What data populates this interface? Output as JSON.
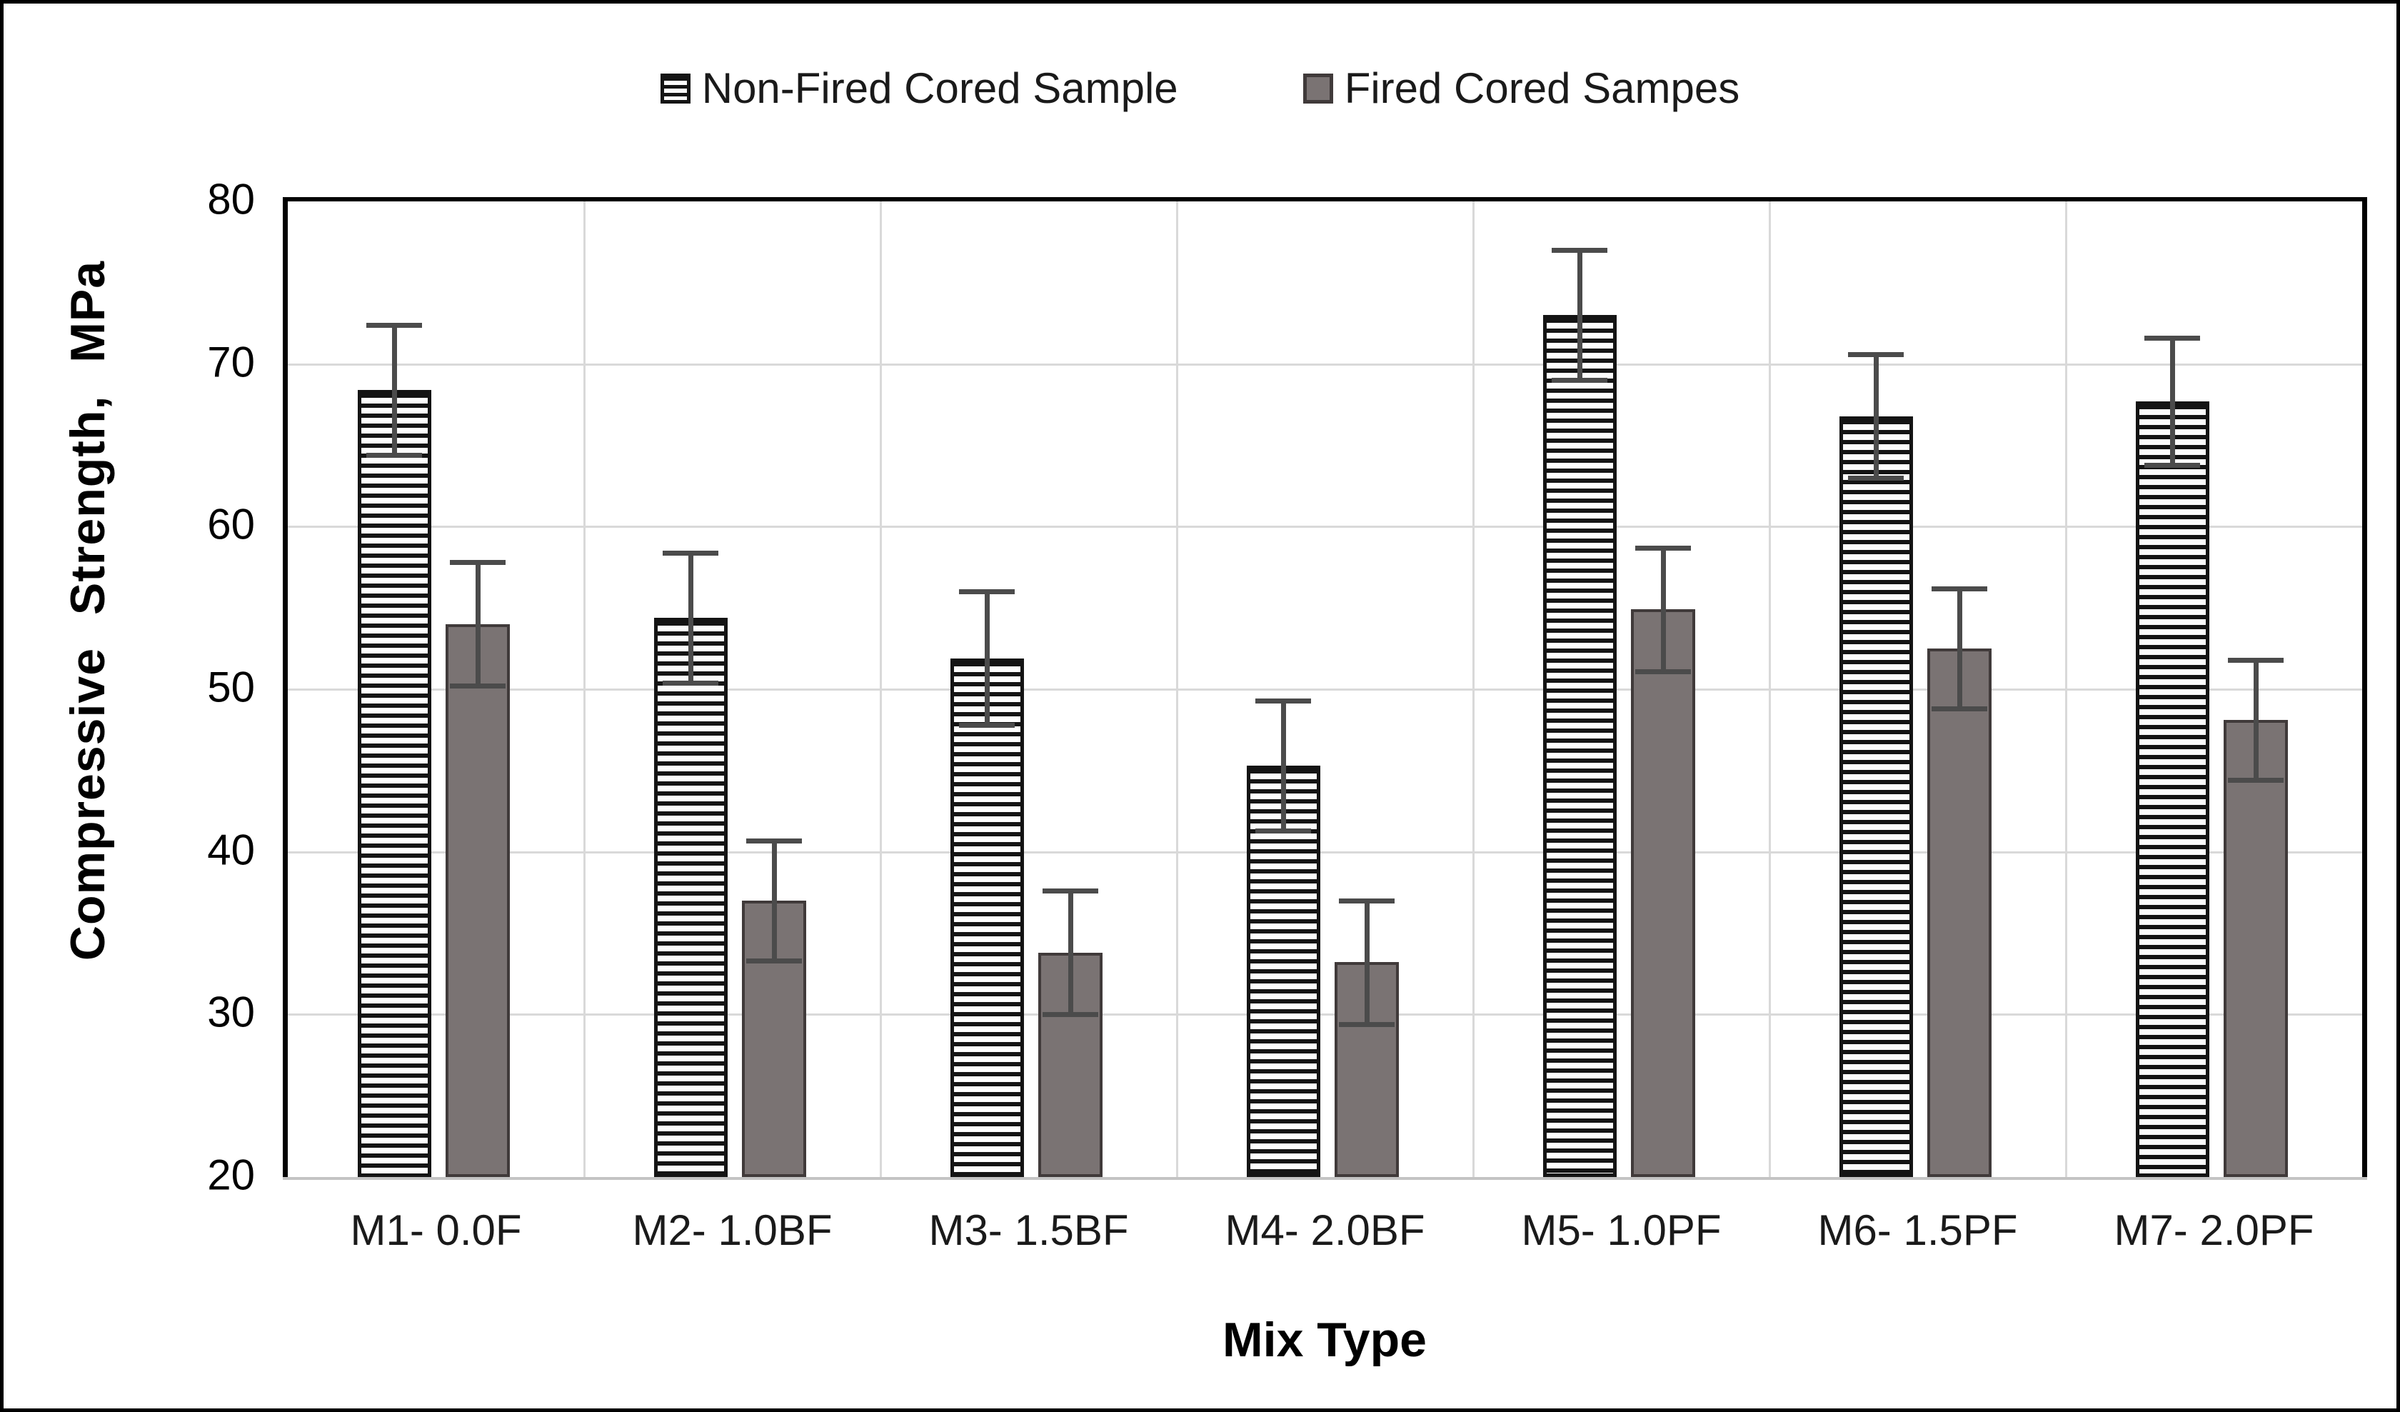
{
  "chart_data": {
    "type": "bar",
    "categories": [
      "M1- 0.0F",
      "M2- 1.0BF",
      "M3- 1.5BF",
      "M4- 2.0BF",
      "M5- 1.0PF",
      "M6- 1.5PF",
      "M7- 2.0PF"
    ],
    "series": [
      {
        "name": "Non-Fired Cored Sample",
        "pattern": "horizontal-stripes",
        "values": [
          68.4,
          54.4,
          51.9,
          45.3,
          73.0,
          66.8,
          67.7
        ],
        "errors": [
          4.0,
          4.0,
          4.1,
          4.0,
          4.0,
          3.8,
          3.9
        ]
      },
      {
        "name": "Fired Cored Sampes",
        "pattern": "solid",
        "values": [
          54.0,
          37.0,
          33.8,
          33.2,
          54.9,
          52.5,
          48.1
        ],
        "errors": [
          3.8,
          3.7,
          3.8,
          3.8,
          3.8,
          3.7,
          3.7
        ]
      }
    ],
    "xlabel": "Mix Type",
    "ylabel": "Compressive Strength, MPa",
    "ylim": [
      20,
      80
    ],
    "yticks": [
      20,
      30,
      40,
      50,
      60,
      70,
      80
    ],
    "grid": true,
    "error_bars": true,
    "legend_position": "top-center"
  },
  "colors": {
    "stripe_dark": "#141414",
    "stripe_light": "#fdfdfd",
    "fired_fill": "#7a7373",
    "fired_border": "#403a3a",
    "error_bar": "#4b4b4b",
    "gridline": "#d9d9d9",
    "axis_line": "#000000",
    "baseline": "#c4c4c4"
  }
}
